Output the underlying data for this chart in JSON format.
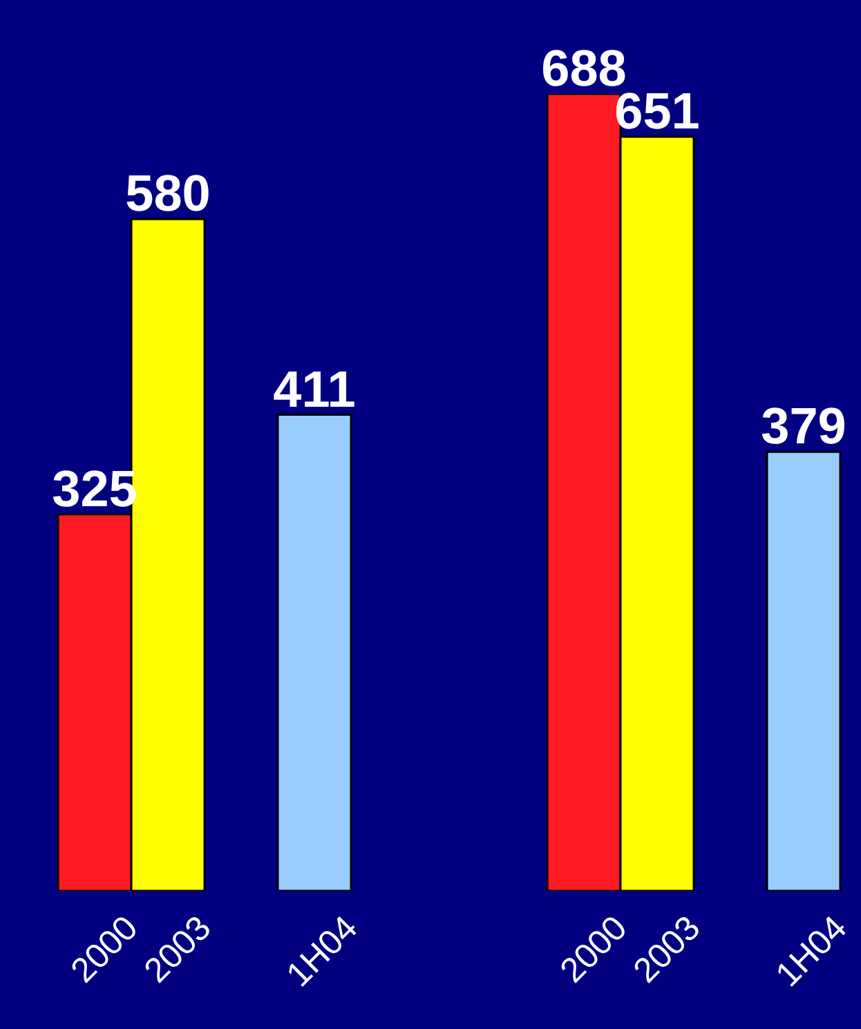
{
  "chart_data": [
    {
      "type": "bar",
      "categories": [
        "2000",
        "2003",
        null,
        "1H04"
      ],
      "values": [
        325,
        580,
        null,
        411
      ],
      "colors": [
        "#ff1a24",
        "#ffff00",
        null,
        "#99ccff"
      ],
      "data_labels": true
    },
    {
      "type": "bar",
      "categories": [
        "2000",
        "2003",
        null,
        "1H04"
      ],
      "values": [
        688,
        651,
        null,
        379
      ],
      "colors": [
        "#ff1a24",
        "#ffff00",
        null,
        "#99ccff"
      ],
      "data_labels": true
    }
  ]
}
